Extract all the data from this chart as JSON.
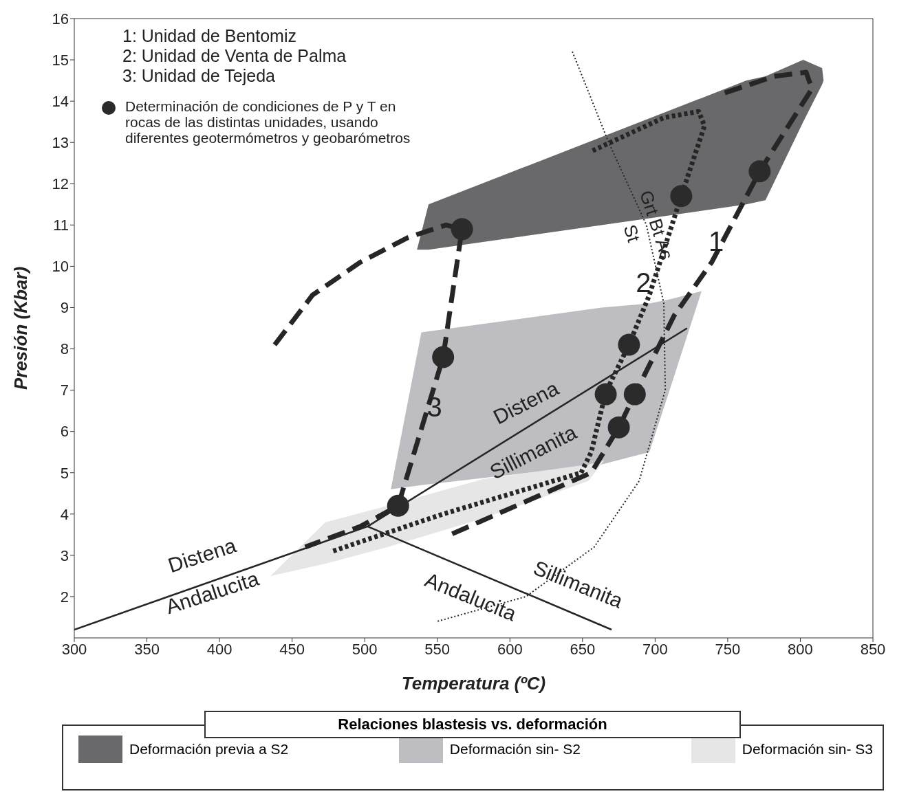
{
  "chart_data": {
    "type": "line",
    "xlabel": "Temperatura (ºC)",
    "ylabel": "Presión (Kbar)",
    "legend_title": "Relaciones blastesis vs. deformación",
    "xlim": [
      300,
      850
    ],
    "xticks": [
      300,
      350,
      400,
      450,
      500,
      550,
      600,
      650,
      700,
      750,
      800,
      850
    ],
    "ylim": [
      1,
      16
    ],
    "yticks": [
      2,
      3,
      4,
      5,
      6,
      7,
      8,
      9,
      10,
      11,
      12,
      13,
      14,
      15,
      16
    ],
    "grid": false,
    "legend": "bottom",
    "series": [
      {
        "type": "area",
        "name": "Deformación previa a S2",
        "color": "#69696b",
        "x": [
          536,
          544,
          763,
          776,
          802,
          815,
          816
        ],
        "lower": [
          10.4,
          10.4,
          11.5,
          11.6,
          13.5,
          14.4,
          14.5
        ],
        "upper": [
          10.4,
          11.5,
          14.5,
          14.6,
          15.0,
          14.8,
          14.5
        ],
        "values": [
          null,
          null,
          null,
          null,
          null,
          null,
          null
        ]
      },
      {
        "type": "area",
        "name": "Deformación sin- S2",
        "color": "#bebec2",
        "x": [
          518,
          539,
          663,
          696,
          710,
          732
        ],
        "lower": [
          4.6,
          4.7,
          5.2,
          5.5,
          7.0,
          9.4
        ],
        "upper": [
          4.6,
          8.4,
          9.0,
          9.1,
          9.2,
          9.4
        ],
        "values": [
          null,
          null,
          null,
          null,
          null,
          null
        ]
      },
      {
        "type": "area",
        "name": "Deformación sin- S3",
        "color": "#e6e6e7",
        "x": [
          435,
          473,
          516,
          582,
          654,
          665
        ],
        "lower": [
          2.5,
          2.8,
          3.2,
          3.9,
          4.8,
          5.3
        ],
        "upper": [
          2.5,
          3.8,
          4.2,
          4.85,
          5.2,
          5.3
        ],
        "values": [
          null,
          null,
          null,
          null,
          null,
          null
        ]
      },
      {
        "type": "line",
        "color": "#262626",
        "line_style": "solid",
        "x": [
          300,
          502,
          722
        ],
        "values": [
          1.2,
          3.7,
          8.5
        ]
      },
      {
        "type": "line",
        "color": "#262626",
        "line_style": "solid",
        "x": [
          502,
          670
        ],
        "values": [
          3.7,
          1.2
        ]
      },
      {
        "type": "line",
        "color": "#262626",
        "line_style": "dotted",
        "x": [
          643,
          668,
          694,
          706,
          707,
          689,
          658,
          611,
          550
        ],
        "values": [
          15.2,
          13.0,
          11.0,
          9.1,
          7.0,
          4.8,
          3.2,
          2.0,
          1.4
        ]
      },
      {
        "color": "#262626",
        "line_style": "dashed",
        "x": [
          438,
          464,
          497,
          530,
          556,
          567,
          554,
          523,
          497,
          459
        ],
        "values": [
          8.1,
          9.3,
          10.1,
          10.7,
          11.0,
          10.9,
          7.8,
          4.2,
          3.7,
          3.2
        ]
      },
      {
        "type": "line",
        "color": "#262626",
        "line_style": "dotted",
        "x": [
          657,
          706,
          730,
          734,
          718,
          696,
          682,
          666,
          656,
          649,
          554,
          478
        ],
        "values": [
          12.8,
          13.6,
          13.75,
          13.4,
          11.7,
          9.3,
          8.1,
          6.95,
          5.5,
          5.0,
          4.0,
          3.1
        ]
      },
      {
        "type": "line",
        "color": "#262626",
        "line_style": "dashed",
        "x": [
          748,
          782,
          804,
          808,
          772,
          739,
          713,
          686,
          675,
          656,
          559
        ],
        "values": [
          14.2,
          14.6,
          14.7,
          14.3,
          12.3,
          10.1,
          8.8,
          6.9,
          6.1,
          5.0,
          3.5
        ]
      },
      {
        "type": "scatter",
        "color": "#2b2b2b",
        "marker": "circle",
        "x": [
          567,
          554,
          523,
          666,
          686,
          675,
          682,
          718,
          772
        ],
        "values": [
          10.9,
          7.8,
          4.2,
          6.9,
          6.9,
          6.1,
          8.1,
          11.7,
          12.3
        ]
      }
    ],
    "annotations": [
      "1: Unidad de Bentomiz",
      "2: Unidad de Venta de Palma",
      "3: Unidad de Tejeda",
      "1",
      "2",
      "3",
      "Distena",
      "Sillimanita",
      "Distena",
      "Andalucita",
      "Andalucita",
      "Sillimanita",
      "Grt Bt As",
      "St",
      "Determinación de condiciones de P y T en rocas de las distintas unidades, usando diferentes geotermómetros y geobarómetros"
    ]
  }
}
